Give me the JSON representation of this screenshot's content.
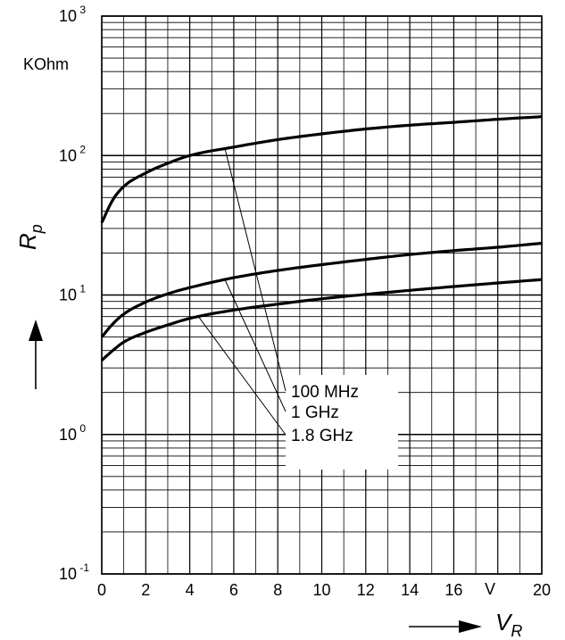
{
  "chart_data": {
    "type": "line",
    "x_scale": "linear",
    "y_scale": "log",
    "xlim": [
      0,
      20
    ],
    "ylim": [
      0.1,
      1000
    ],
    "x_ticks": [
      "0",
      "2",
      "4",
      "6",
      "8",
      "10",
      "12",
      "14",
      "16",
      "20"
    ],
    "x_unit": "V",
    "y_ticks": [
      {
        "base": "10",
        "exp": "-1",
        "value": 0.1
      },
      {
        "base": "10",
        "exp": "0",
        "value": 1
      },
      {
        "base": "10",
        "exp": "1",
        "value": 10
      },
      {
        "base": "10",
        "exp": "2",
        "value": 100
      },
      {
        "base": "10",
        "exp": "3",
        "value": 1000
      }
    ],
    "y_unit": "KOhm",
    "xlabel": {
      "main": "V",
      "sub": "R"
    },
    "ylabel": {
      "main": "R",
      "sub": "p"
    },
    "grid": true,
    "legend": [
      "100 MHz",
      "1 GHz",
      "1.8 GHz"
    ],
    "series": [
      {
        "name": "100 MHz",
        "x": [
          0,
          0.5,
          1,
          2,
          3,
          4,
          6,
          8,
          10,
          12,
          14,
          16,
          18,
          20
        ],
        "y": [
          33,
          48,
          60,
          75,
          88,
          100,
          115,
          130,
          143,
          155,
          165,
          173,
          182,
          190
        ]
      },
      {
        "name": "1 GHz",
        "x": [
          0,
          0.5,
          1,
          2,
          3,
          4,
          6,
          8,
          10,
          12,
          14,
          16,
          18,
          20
        ],
        "y": [
          5.0,
          6.2,
          7.3,
          8.9,
          10.2,
          11.3,
          13.3,
          15.0,
          16.5,
          18.0,
          19.5,
          20.8,
          22.0,
          23.5
        ]
      },
      {
        "name": "1.8 GHz",
        "x": [
          0,
          0.5,
          1,
          2,
          3,
          4,
          6,
          8,
          10,
          12,
          14,
          16,
          18,
          20
        ],
        "y": [
          3.4,
          4.0,
          4.6,
          5.4,
          6.1,
          6.8,
          7.8,
          8.6,
          9.4,
          10.1,
          10.8,
          11.5,
          12.2,
          12.9
        ]
      }
    ]
  }
}
